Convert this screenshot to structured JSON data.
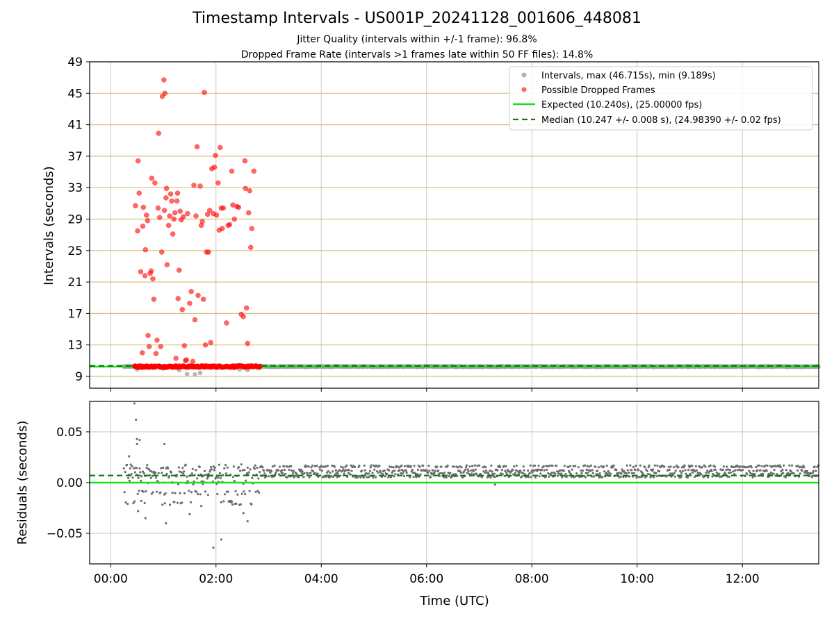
{
  "title": "Timestamp Intervals - US001P_20241128_001606_448081",
  "subtitle_1": "Jitter Quality (intervals within +/-1 frame): 96.8%",
  "subtitle_2": "Dropped Frame Rate (intervals >1 frames late within 50 FF files): 14.8%",
  "colors": {
    "intervals": "#a0a0a0",
    "dropped": "#ff0000",
    "expected": "#1be01b",
    "median": "#0a7a0a",
    "residuals": "#6e6e6e",
    "hgrid_top": "#d8c27a",
    "grid": "#c8c8c8"
  },
  "chart_data": [
    {
      "type": "scatter",
      "name": "intervals",
      "xlabel": "",
      "ylabel": "Intervals (seconds)",
      "x_ticks": [
        "00:00",
        "02:00",
        "04:00",
        "06:00",
        "08:00",
        "10:00",
        "12:00"
      ],
      "x_range_hours": [
        -0.4,
        13.45
      ],
      "y_ticks": [
        9,
        13,
        17,
        21,
        25,
        29,
        33,
        37,
        41,
        45,
        49
      ],
      "ylim": [
        7.5,
        49
      ],
      "grid": "on",
      "legend_position": "top-right",
      "legend": [
        "Intervals, max (46.715s), min (9.189s)",
        "Possible Dropped Frames",
        "Expected (10.240s), (25.00000 fps)",
        "Median (10.247 +/- 0.008 s), (24.98390 +/- 0.02 fps)"
      ],
      "expected_value": 10.24,
      "median_value": 10.247,
      "intervals_band": {
        "x_start": 0.25,
        "x_end": 13.45,
        "value": 10.25
      },
      "intervals_low": [
        [
          0.5,
          9.9
        ],
        [
          1.3,
          9.8
        ],
        [
          1.45,
          9.3
        ],
        [
          1.6,
          9.25
        ],
        [
          1.7,
          9.45
        ],
        [
          2.45,
          9.9
        ],
        [
          2.6,
          9.8
        ],
        [
          1.0,
          10.0
        ]
      ],
      "dropped_band": {
        "x_start": 0.45,
        "x_end": 2.85,
        "value": 10.25
      },
      "dropped": [
        [
          0.47,
          30.7
        ],
        [
          0.51,
          27.5
        ],
        [
          0.52,
          36.4
        ],
        [
          0.54,
          32.3
        ],
        [
          0.57,
          22.3
        ],
        [
          0.6,
          12.0
        ],
        [
          0.61,
          28.1
        ],
        [
          0.62,
          30.5
        ],
        [
          0.65,
          21.8
        ],
        [
          0.66,
          25.1
        ],
        [
          0.68,
          29.5
        ],
        [
          0.7,
          28.8
        ],
        [
          0.71,
          14.2
        ],
        [
          0.73,
          12.8
        ],
        [
          0.75,
          22.1
        ],
        [
          0.77,
          22.4
        ],
        [
          0.78,
          34.2
        ],
        [
          0.8,
          21.4
        ],
        [
          0.82,
          18.8
        ],
        [
          0.84,
          33.6
        ],
        [
          0.86,
          11.9
        ],
        [
          0.88,
          13.6
        ],
        [
          0.9,
          30.4
        ],
        [
          0.91,
          39.9
        ],
        [
          0.93,
          29.2
        ],
        [
          0.95,
          12.8
        ],
        [
          0.97,
          24.8
        ],
        [
          0.98,
          44.6
        ],
        [
          1.01,
          46.7
        ],
        [
          1.03,
          45.0
        ],
        [
          1.02,
          30.1
        ],
        [
          1.05,
          31.7
        ],
        [
          1.06,
          32.9
        ],
        [
          1.07,
          23.2
        ],
        [
          1.1,
          28.2
        ],
        [
          1.12,
          29.4
        ],
        [
          1.14,
          32.2
        ],
        [
          1.16,
          31.3
        ],
        [
          1.18,
          27.1
        ],
        [
          1.2,
          29.0
        ],
        [
          1.22,
          29.8
        ],
        [
          1.24,
          11.3
        ],
        [
          1.26,
          31.3
        ],
        [
          1.27,
          32.3
        ],
        [
          1.28,
          18.9
        ],
        [
          1.3,
          22.5
        ],
        [
          1.32,
          30.0
        ],
        [
          1.34,
          28.9
        ],
        [
          1.36,
          17.5
        ],
        [
          1.38,
          29.3
        ],
        [
          1.4,
          12.9
        ],
        [
          1.42,
          11.0
        ],
        [
          1.44,
          11.1
        ],
        [
          1.46,
          29.7
        ],
        [
          1.5,
          18.3
        ],
        [
          1.53,
          19.8
        ],
        [
          1.56,
          10.9
        ],
        [
          1.58,
          33.3
        ],
        [
          1.6,
          16.2
        ],
        [
          1.62,
          29.4
        ],
        [
          1.64,
          38.2
        ],
        [
          1.66,
          19.3
        ],
        [
          1.7,
          33.2
        ],
        [
          1.72,
          28.2
        ],
        [
          1.74,
          28.7
        ],
        [
          1.76,
          18.8
        ],
        [
          1.78,
          45.1
        ],
        [
          1.8,
          13.0
        ],
        [
          1.82,
          24.8
        ],
        [
          1.84,
          29.6
        ],
        [
          1.86,
          24.8
        ],
        [
          1.88,
          30.1
        ],
        [
          1.9,
          13.3
        ],
        [
          1.92,
          35.4
        ],
        [
          1.95,
          29.7
        ],
        [
          1.97,
          35.6
        ],
        [
          1.99,
          37.1
        ],
        [
          2.01,
          29.5
        ],
        [
          2.04,
          33.6
        ],
        [
          2.06,
          27.6
        ],
        [
          2.08,
          38.1
        ],
        [
          2.1,
          30.4
        ],
        [
          2.12,
          27.8
        ],
        [
          2.14,
          30.4
        ],
        [
          2.2,
          15.8
        ],
        [
          2.23,
          28.2
        ],
        [
          2.26,
          28.3
        ],
        [
          2.3,
          35.1
        ],
        [
          2.32,
          30.8
        ],
        [
          2.35,
          29.0
        ],
        [
          2.4,
          30.6
        ],
        [
          2.43,
          30.5
        ],
        [
          2.48,
          16.9
        ],
        [
          2.52,
          16.6
        ],
        [
          2.55,
          36.4
        ],
        [
          2.56,
          32.9
        ],
        [
          2.58,
          17.7
        ],
        [
          2.6,
          13.2
        ],
        [
          2.62,
          29.8
        ],
        [
          2.64,
          32.6
        ],
        [
          2.66,
          25.4
        ],
        [
          2.68,
          27.8
        ],
        [
          2.72,
          35.1
        ]
      ]
    },
    {
      "type": "scatter",
      "name": "residuals",
      "xlabel": "Time (UTC)",
      "ylabel": "Residuals (seconds)",
      "x_ticks": [
        "00:00",
        "02:00",
        "04:00",
        "06:00",
        "08:00",
        "10:00",
        "12:00"
      ],
      "x_range_hours": [
        -0.4,
        13.45
      ],
      "y_ticks": [
        -0.05,
        0.0,
        0.05
      ],
      "y_tick_labels": [
        "−0.05",
        "0.00",
        "0.05"
      ],
      "ylim": [
        -0.08,
        0.08
      ],
      "grid": "on",
      "expected_value": 0.0,
      "median_value": 0.007,
      "steady_band": {
        "x_start": 2.85,
        "x_end": 13.45,
        "values": [
          0.006,
          0.009,
          0.012,
          0.016
        ]
      },
      "scatter_region": {
        "x_start": 0.25,
        "x_end": 2.85,
        "values": [
          -0.02,
          -0.01,
          0.0,
          0.006,
          0.009,
          0.013,
          0.016
        ]
      },
      "outliers": [
        [
          0.45,
          0.078
        ],
        [
          0.48,
          0.062
        ],
        [
          0.5,
          0.043
        ],
        [
          0.5,
          0.038
        ],
        [
          0.55,
          0.042
        ],
        [
          0.52,
          -0.028
        ],
        [
          0.58,
          -0.018
        ],
        [
          0.66,
          -0.035
        ],
        [
          0.78,
          -0.011
        ],
        [
          1.02,
          0.038
        ],
        [
          1.05,
          -0.04
        ],
        [
          0.35,
          0.026
        ],
        [
          1.5,
          -0.031
        ],
        [
          1.72,
          -0.023
        ],
        [
          1.95,
          -0.064
        ],
        [
          2.1,
          -0.056
        ],
        [
          2.52,
          -0.03
        ],
        [
          2.6,
          -0.038
        ],
        [
          1.85,
          -0.012
        ],
        [
          2.28,
          -0.018
        ],
        [
          7.3,
          -0.002
        ]
      ]
    }
  ]
}
